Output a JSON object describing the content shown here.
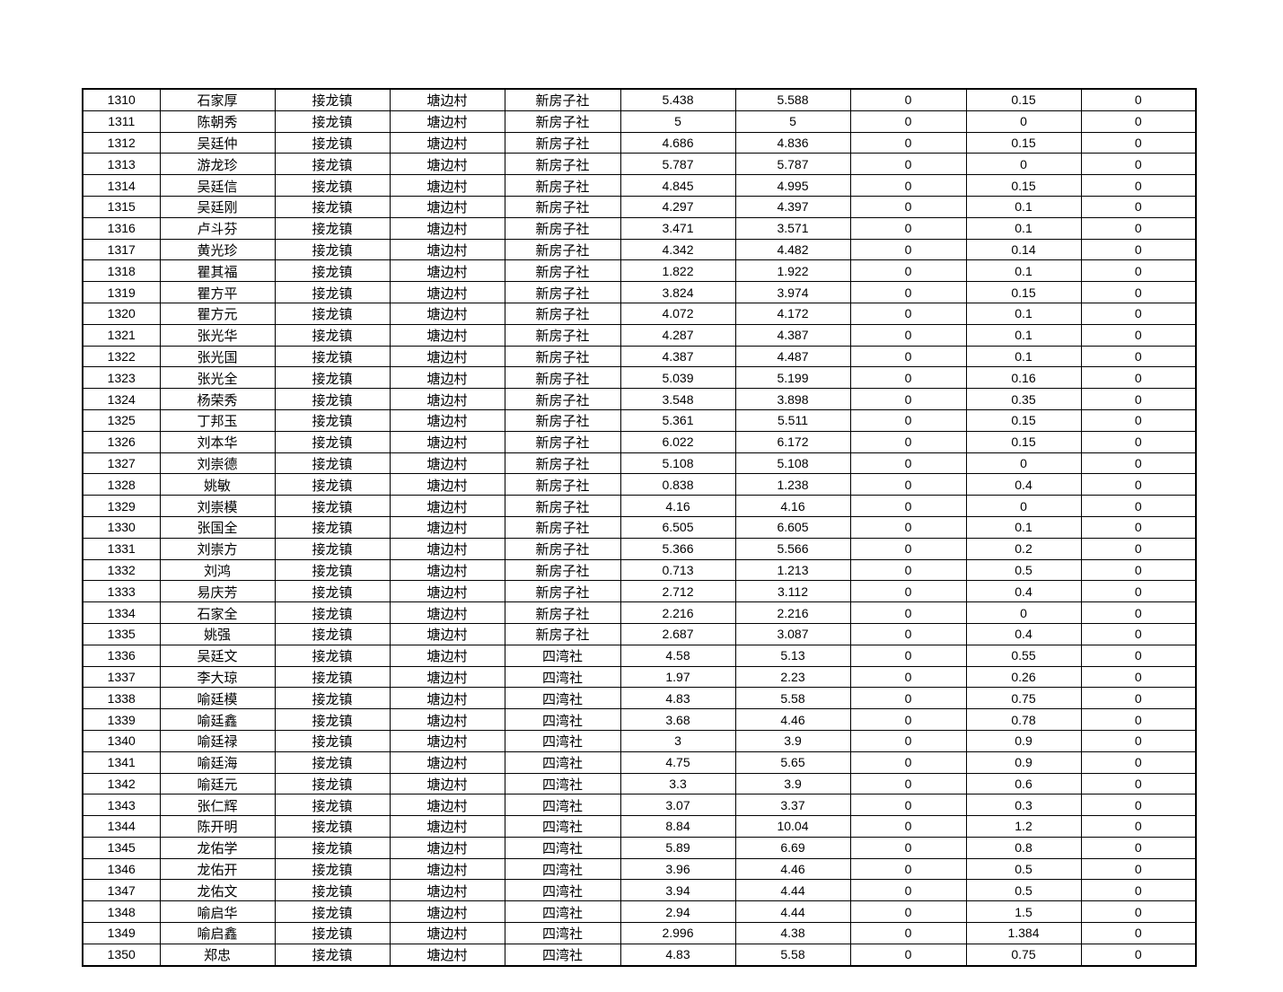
{
  "table": {
    "rows": [
      [
        "1310",
        "石家厚",
        "接龙镇",
        "塘边村",
        "新房子社",
        "5.438",
        "5.588",
        "0",
        "0.15",
        "0"
      ],
      [
        "1311",
        "陈朝秀",
        "接龙镇",
        "塘边村",
        "新房子社",
        "5",
        "5",
        "0",
        "0",
        "0"
      ],
      [
        "1312",
        "吴廷仲",
        "接龙镇",
        "塘边村",
        "新房子社",
        "4.686",
        "4.836",
        "0",
        "0.15",
        "0"
      ],
      [
        "1313",
        "游龙珍",
        "接龙镇",
        "塘边村",
        "新房子社",
        "5.787",
        "5.787",
        "0",
        "0",
        "0"
      ],
      [
        "1314",
        "吴廷信",
        "接龙镇",
        "塘边村",
        "新房子社",
        "4.845",
        "4.995",
        "0",
        "0.15",
        "0"
      ],
      [
        "1315",
        "吴廷刚",
        "接龙镇",
        "塘边村",
        "新房子社",
        "4.297",
        "4.397",
        "0",
        "0.1",
        "0"
      ],
      [
        "1316",
        "卢斗芬",
        "接龙镇",
        "塘边村",
        "新房子社",
        "3.471",
        "3.571",
        "0",
        "0.1",
        "0"
      ],
      [
        "1317",
        "黄光珍",
        "接龙镇",
        "塘边村",
        "新房子社",
        "4.342",
        "4.482",
        "0",
        "0.14",
        "0"
      ],
      [
        "1318",
        "瞿其福",
        "接龙镇",
        "塘边村",
        "新房子社",
        "1.822",
        "1.922",
        "0",
        "0.1",
        "0"
      ],
      [
        "1319",
        "瞿方平",
        "接龙镇",
        "塘边村",
        "新房子社",
        "3.824",
        "3.974",
        "0",
        "0.15",
        "0"
      ],
      [
        "1320",
        "瞿方元",
        "接龙镇",
        "塘边村",
        "新房子社",
        "4.072",
        "4.172",
        "0",
        "0.1",
        "0"
      ],
      [
        "1321",
        "张光华",
        "接龙镇",
        "塘边村",
        "新房子社",
        "4.287",
        "4.387",
        "0",
        "0.1",
        "0"
      ],
      [
        "1322",
        "张光国",
        "接龙镇",
        "塘边村",
        "新房子社",
        "4.387",
        "4.487",
        "0",
        "0.1",
        "0"
      ],
      [
        "1323",
        "张光全",
        "接龙镇",
        "塘边村",
        "新房子社",
        "5.039",
        "5.199",
        "0",
        "0.16",
        "0"
      ],
      [
        "1324",
        "杨荣秀",
        "接龙镇",
        "塘边村",
        "新房子社",
        "3.548",
        "3.898",
        "0",
        "0.35",
        "0"
      ],
      [
        "1325",
        "丁邦玉",
        "接龙镇",
        "塘边村",
        "新房子社",
        "5.361",
        "5.511",
        "0",
        "0.15",
        "0"
      ],
      [
        "1326",
        "刘本华",
        "接龙镇",
        "塘边村",
        "新房子社",
        "6.022",
        "6.172",
        "0",
        "0.15",
        "0"
      ],
      [
        "1327",
        "刘崇德",
        "接龙镇",
        "塘边村",
        "新房子社",
        "5.108",
        "5.108",
        "0",
        "0",
        "0"
      ],
      [
        "1328",
        "姚敏",
        "接龙镇",
        "塘边村",
        "新房子社",
        "0.838",
        "1.238",
        "0",
        "0.4",
        "0"
      ],
      [
        "1329",
        "刘崇模",
        "接龙镇",
        "塘边村",
        "新房子社",
        "4.16",
        "4.16",
        "0",
        "0",
        "0"
      ],
      [
        "1330",
        "张国全",
        "接龙镇",
        "塘边村",
        "新房子社",
        "6.505",
        "6.605",
        "0",
        "0.1",
        "0"
      ],
      [
        "1331",
        "刘崇方",
        "接龙镇",
        "塘边村",
        "新房子社",
        "5.366",
        "5.566",
        "0",
        "0.2",
        "0"
      ],
      [
        "1332",
        "刘鸿",
        "接龙镇",
        "塘边村",
        "新房子社",
        "0.713",
        "1.213",
        "0",
        "0.5",
        "0"
      ],
      [
        "1333",
        "易庆芳",
        "接龙镇",
        "塘边村",
        "新房子社",
        "2.712",
        "3.112",
        "0",
        "0.4",
        "0"
      ],
      [
        "1334",
        "石家全",
        "接龙镇",
        "塘边村",
        "新房子社",
        "2.216",
        "2.216",
        "0",
        "0",
        "0"
      ],
      [
        "1335",
        "姚强",
        "接龙镇",
        "塘边村",
        "新房子社",
        "2.687",
        "3.087",
        "0",
        "0.4",
        "0"
      ],
      [
        "1336",
        "吴廷文",
        "接龙镇",
        "塘边村",
        "四湾社",
        "4.58",
        "5.13",
        "0",
        "0.55",
        "0"
      ],
      [
        "1337",
        "李大琼",
        "接龙镇",
        "塘边村",
        "四湾社",
        "1.97",
        "2.23",
        "0",
        "0.26",
        "0"
      ],
      [
        "1338",
        "喻廷模",
        "接龙镇",
        "塘边村",
        "四湾社",
        "4.83",
        "5.58",
        "0",
        "0.75",
        "0"
      ],
      [
        "1339",
        "喻廷鑫",
        "接龙镇",
        "塘边村",
        "四湾社",
        "3.68",
        "4.46",
        "0",
        "0.78",
        "0"
      ],
      [
        "1340",
        "喻廷禄",
        "接龙镇",
        "塘边村",
        "四湾社",
        "3",
        "3.9",
        "0",
        "0.9",
        "0"
      ],
      [
        "1341",
        "喻廷海",
        "接龙镇",
        "塘边村",
        "四湾社",
        "4.75",
        "5.65",
        "0",
        "0.9",
        "0"
      ],
      [
        "1342",
        "喻廷元",
        "接龙镇",
        "塘边村",
        "四湾社",
        "3.3",
        "3.9",
        "0",
        "0.6",
        "0"
      ],
      [
        "1343",
        "张仁辉",
        "接龙镇",
        "塘边村",
        "四湾社",
        "3.07",
        "3.37",
        "0",
        "0.3",
        "0"
      ],
      [
        "1344",
        "陈开明",
        "接龙镇",
        "塘边村",
        "四湾社",
        "8.84",
        "10.04",
        "0",
        "1.2",
        "0"
      ],
      [
        "1345",
        "龙佑学",
        "接龙镇",
        "塘边村",
        "四湾社",
        "5.89",
        "6.69",
        "0",
        "0.8",
        "0"
      ],
      [
        "1346",
        "龙佑开",
        "接龙镇",
        "塘边村",
        "四湾社",
        "3.96",
        "4.46",
        "0",
        "0.5",
        "0"
      ],
      [
        "1347",
        "龙佑文",
        "接龙镇",
        "塘边村",
        "四湾社",
        "3.94",
        "4.44",
        "0",
        "0.5",
        "0"
      ],
      [
        "1348",
        "喻启华",
        "接龙镇",
        "塘边村",
        "四湾社",
        "2.94",
        "4.44",
        "0",
        "1.5",
        "0"
      ],
      [
        "1349",
        "喻启鑫",
        "接龙镇",
        "塘边村",
        "四湾社",
        "2.996",
        "4.38",
        "0",
        "1.384",
        "0"
      ],
      [
        "1350",
        "郑忠",
        "接龙镇",
        "塘边村",
        "四湾社",
        "4.83",
        "5.58",
        "0",
        "0.75",
        "0"
      ]
    ]
  }
}
